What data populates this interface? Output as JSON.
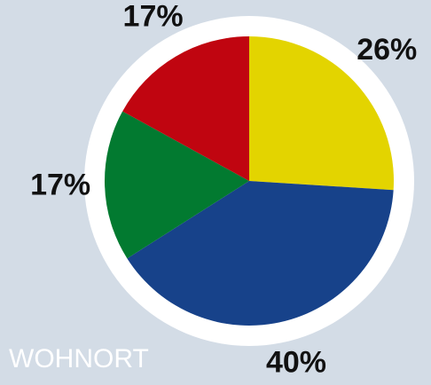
{
  "chart_data": {
    "type": "pie",
    "title": "WOHNORT",
    "values": [
      26,
      40,
      17,
      17
    ],
    "value_labels": [
      "26%",
      "40%",
      "17%",
      "17%"
    ],
    "colors": [
      "#e3d400",
      "#17428a",
      "#027a30",
      "#c00510"
    ]
  }
}
